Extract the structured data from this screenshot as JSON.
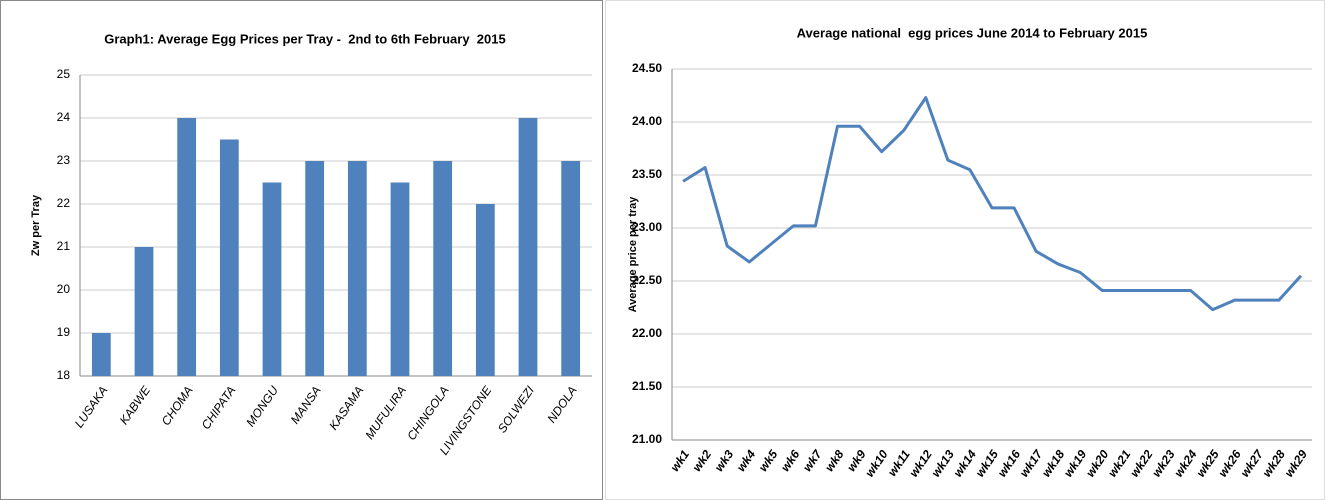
{
  "chart_data": [
    {
      "type": "bar",
      "title": "Graph1: Average Egg Prices per Tray -  2nd to 6th February  2015",
      "y_label": "Zw per Tray",
      "categories": [
        "LUSAKA",
        "KABWE",
        "CHOMA",
        "CHIPATA",
        "MONGU",
        "MANSA",
        "KASAMA",
        "MUFULIRA",
        "CHINGOLA",
        "LIVINGSTONE",
        "SOLWEZI",
        "NDOLA"
      ],
      "values": [
        19,
        21,
        24,
        23.5,
        22.5,
        23,
        23,
        22.5,
        23,
        22,
        24,
        23
      ],
      "color": "#4f81bd",
      "ylim": [
        18,
        25
      ],
      "yticks": [
        18,
        19,
        20,
        21,
        22,
        23,
        24,
        25
      ],
      "grid": true
    },
    {
      "type": "line",
      "title": "Average national  egg prices June 2014 to February 2015",
      "y_label": "Average price per tray",
      "categories": [
        "wk1",
        "wk2",
        "wk3",
        "wk4",
        "wk5",
        "wk6",
        "wk7",
        "wk8",
        "wk9",
        "wk10",
        "wk11",
        "wk12",
        "wk13",
        "wk14",
        "wk15",
        "wk16",
        "wk17",
        "wk18",
        "wk19",
        "wk20",
        "wk21",
        "wk22",
        "wk23",
        "wk24",
        "wk25",
        "wk26",
        "wk27",
        "wk28",
        "wk29"
      ],
      "values": [
        23.44,
        23.57,
        22.83,
        22.68,
        22.85,
        23.02,
        23.02,
        23.96,
        23.96,
        23.72,
        23.92,
        24.23,
        23.64,
        23.55,
        23.19,
        23.19,
        22.78,
        22.66,
        22.58,
        22.41,
        22.41,
        22.41,
        22.41,
        22.41,
        22.23,
        22.32,
        22.32,
        22.32,
        22.55
      ],
      "color": "#4f81bd",
      "ylim": [
        21,
        24.5
      ],
      "yticks": [
        {
          "value": 21,
          "label": "21.00"
        },
        {
          "value": 21.5,
          "label": "21.50"
        },
        {
          "value": 22,
          "label": "22.00"
        },
        {
          "value": 22.5,
          "label": "22.50"
        },
        {
          "value": 23,
          "label": "23.00"
        },
        {
          "value": 23.5,
          "label": "23.50"
        },
        {
          "value": 24,
          "label": "24.00"
        },
        {
          "value": 24.5,
          "label": "24.50"
        }
      ],
      "grid": true
    }
  ]
}
